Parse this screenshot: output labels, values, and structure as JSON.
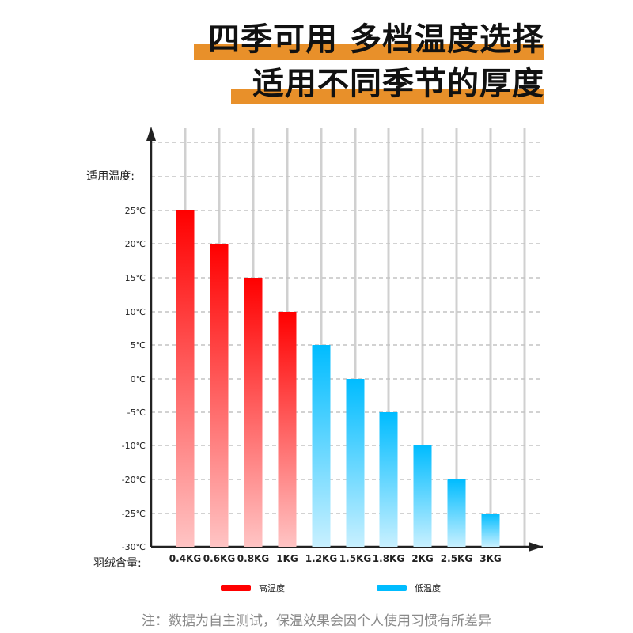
{
  "header": {
    "line1": "四季可用 多档温度选择",
    "line2": "适用不同季节的厚度"
  },
  "colors": {
    "accent": "#e8902a",
    "high_top": "#ff0000",
    "high_bottom": "#ffc4c4",
    "low_top": "#00bcff",
    "low_bottom": "#c8f0ff"
  },
  "chart_data": {
    "type": "bar",
    "title": "",
    "ylabel": "适用温度:",
    "xlabel": "羽绒含量:",
    "ylim": [
      -30,
      25
    ],
    "y_ticks": [
      {
        "value": 25,
        "label": "25℃"
      },
      {
        "value": 20,
        "label": "20℃"
      },
      {
        "value": 15,
        "label": "15℃"
      },
      {
        "value": 10,
        "label": "10℃"
      },
      {
        "value": 5,
        "label": "5℃"
      },
      {
        "value": 0,
        "label": "0℃"
      },
      {
        "value": -5,
        "label": "-5℃"
      },
      {
        "value": -10,
        "label": "-10℃"
      },
      {
        "value": -20,
        "label": "-20℃"
      },
      {
        "value": -25,
        "label": "-25℃"
      },
      {
        "value": -30,
        "label": "-30℃"
      }
    ],
    "categories": [
      "0.4KG",
      "0.6KG",
      "0.8KG",
      "1KG",
      "1.2KG",
      "1.5KG",
      "1.8KG",
      "2KG",
      "2.5KG",
      "3KG"
    ],
    "values": [
      25,
      20,
      15,
      10,
      5,
      0,
      -5,
      -10,
      -20,
      -25
    ],
    "groups": [
      "high",
      "high",
      "high",
      "high",
      "low",
      "low",
      "low",
      "low",
      "low",
      "low"
    ],
    "legend": [
      {
        "key": "high",
        "label": "高温度"
      },
      {
        "key": "low",
        "label": "低温度"
      }
    ],
    "legend_position": "bottom",
    "grid": true
  },
  "footnote": "注：数据为自主测试，保温效果会因个人使用习惯有所差异"
}
